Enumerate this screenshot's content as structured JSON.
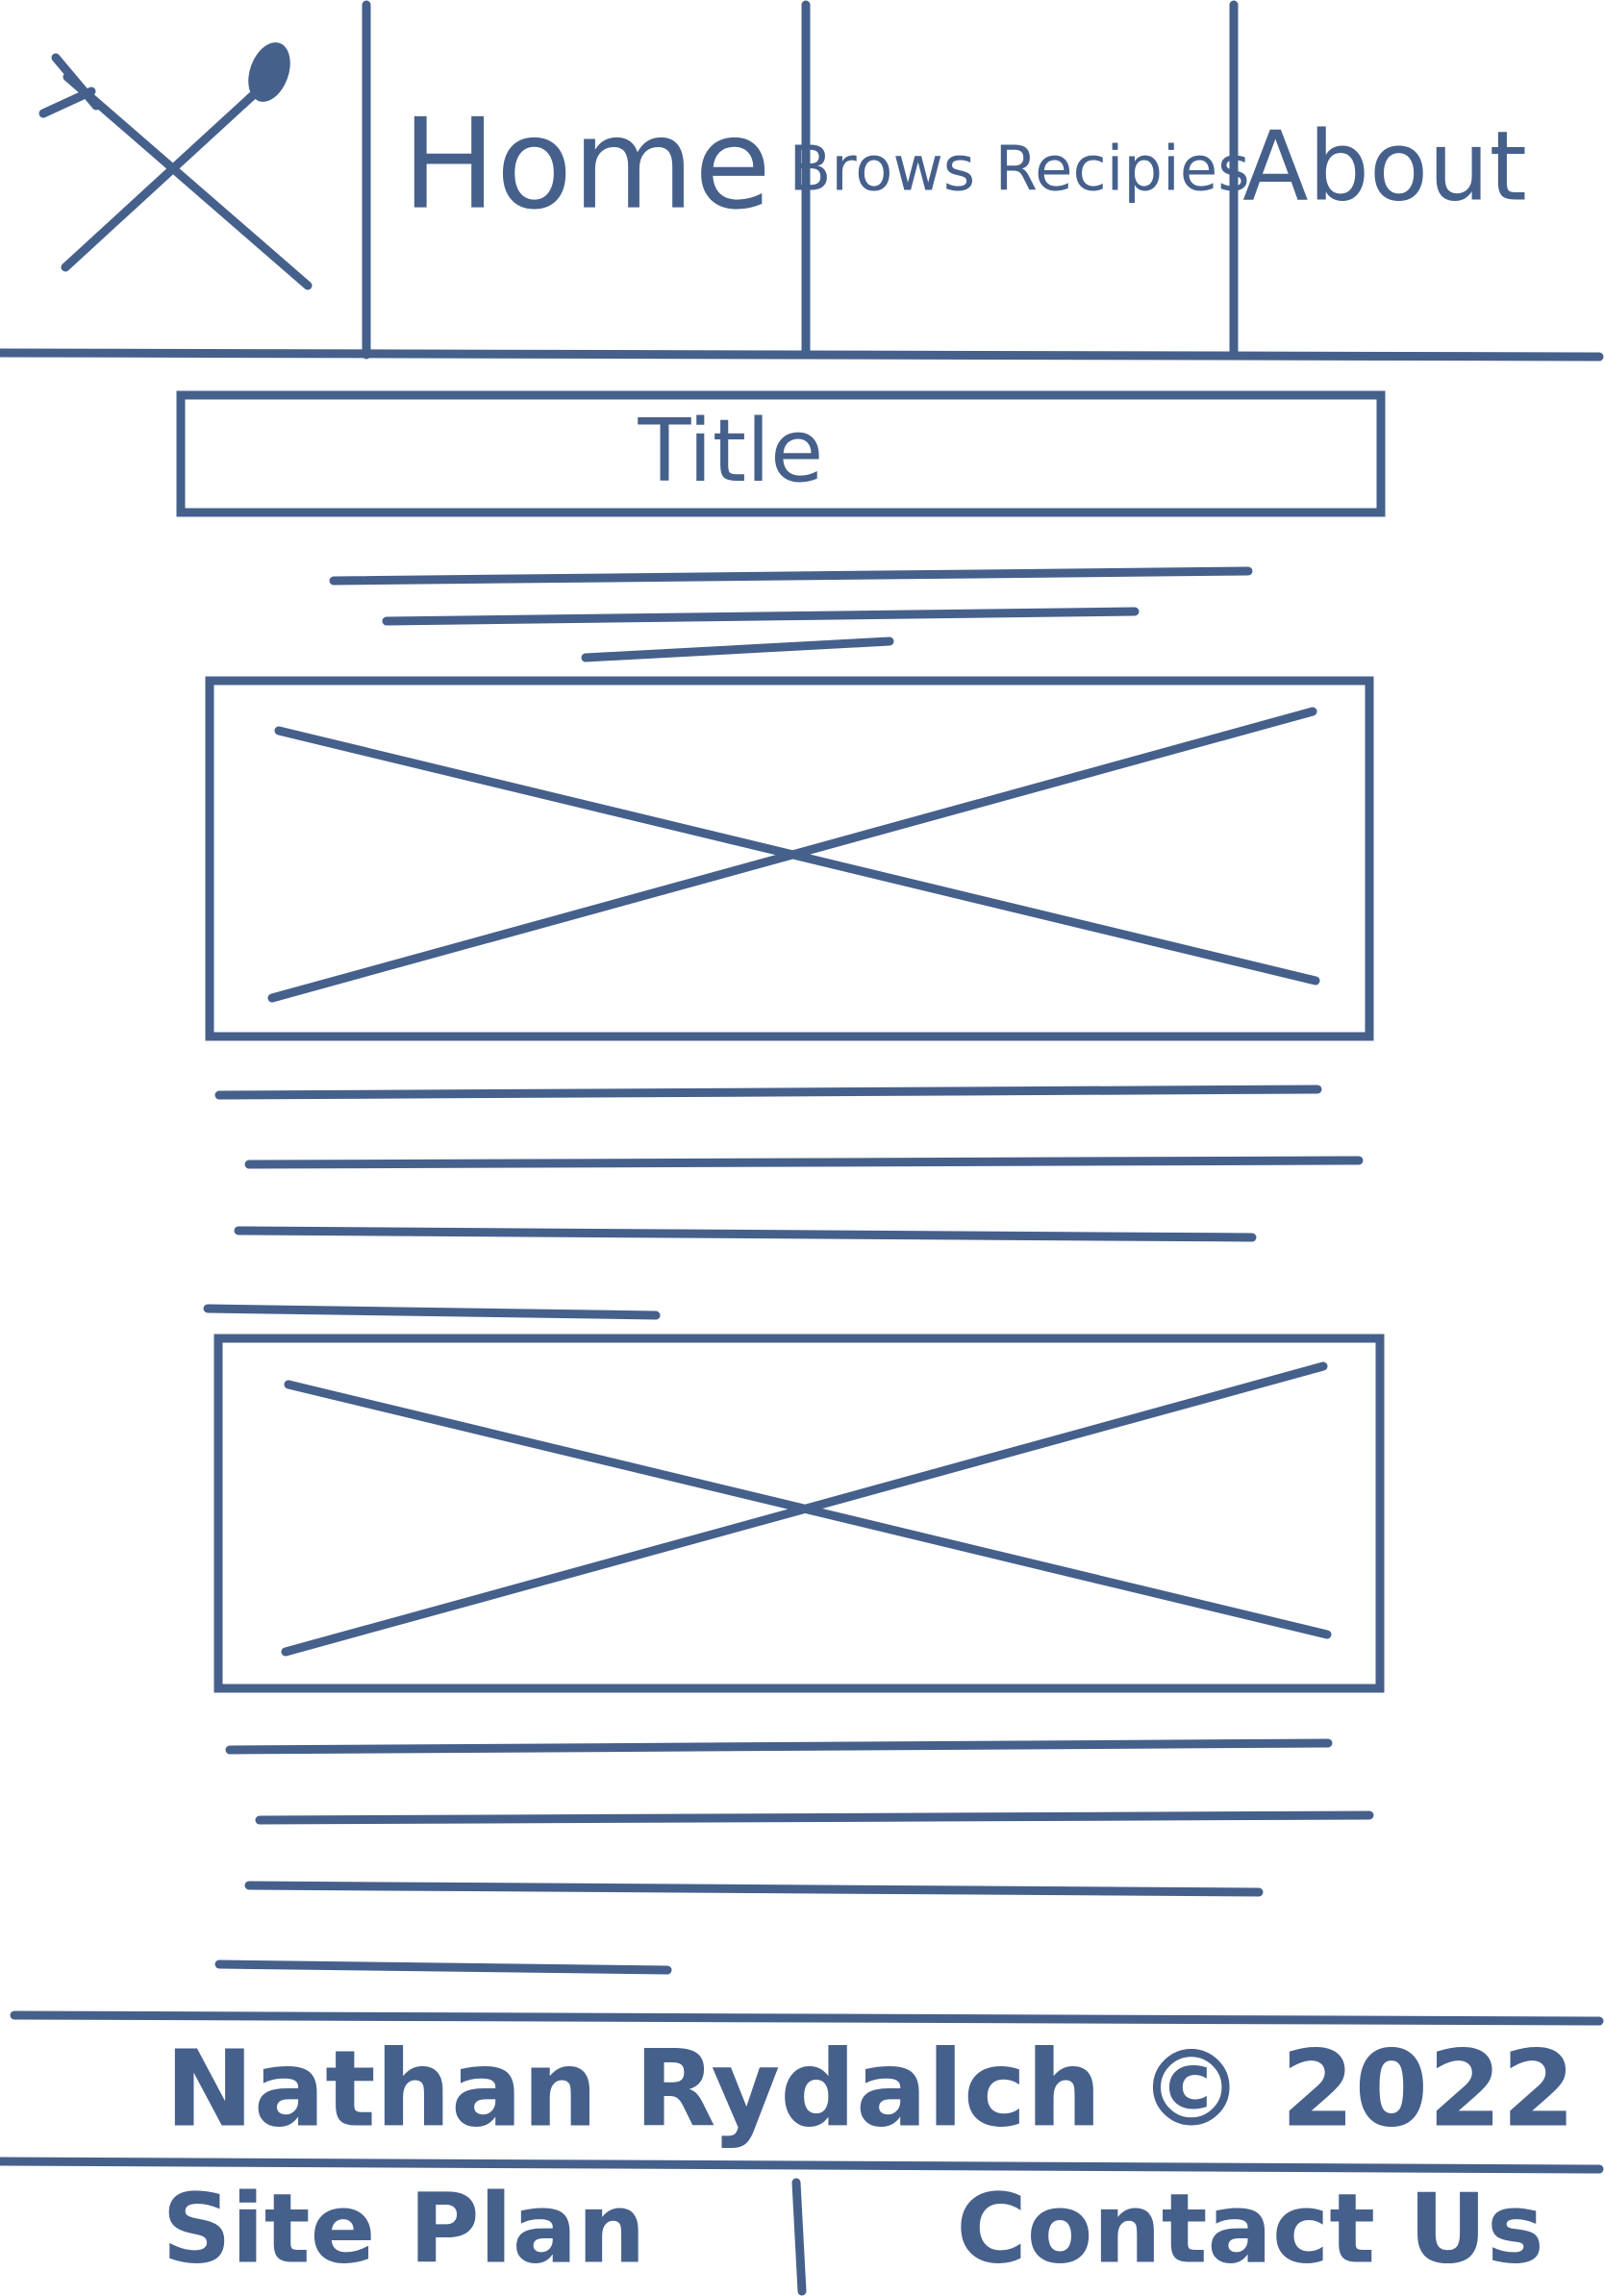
{
  "nav": {
    "items": [
      "Home",
      "Brows Recipies",
      "About"
    ]
  },
  "title": "Title",
  "footer": {
    "credit": "Nathan Rydalch © 2022",
    "links": [
      "Site Plan",
      "Contact Us"
    ]
  }
}
